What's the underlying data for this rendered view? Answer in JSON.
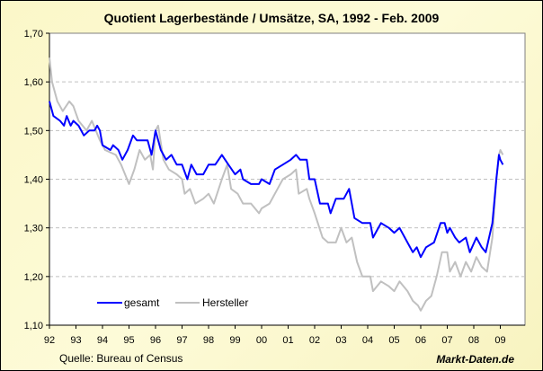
{
  "chart_data": {
    "type": "line",
    "title": "Quotient Lagerbestände / Umsätze, SA, 1992 -  Feb. 2009",
    "xlabel": "",
    "ylabel": "",
    "xlim": [
      1992,
      2010
    ],
    "ylim": [
      1.1,
      1.7
    ],
    "grid": true,
    "legend": "bottom-left",
    "x_tick_labels": [
      "92",
      "93",
      "94",
      "95",
      "96",
      "97",
      "98",
      "99",
      "00",
      "01",
      "02",
      "03",
      "04",
      "05",
      "06",
      "07",
      "08",
      "09"
    ],
    "y_tick_labels": [
      "1,10",
      "1,20",
      "1,30",
      "1,40",
      "1,50",
      "1,60",
      "1,70"
    ],
    "y_ticks": [
      1.1,
      1.2,
      1.3,
      1.4,
      1.5,
      1.6,
      1.7
    ],
    "series": [
      {
        "name": "gesamt",
        "color": "#0000ff",
        "points": [
          [
            1992.0,
            1.56
          ],
          [
            1992.15,
            1.53
          ],
          [
            1992.4,
            1.52
          ],
          [
            1992.55,
            1.51
          ],
          [
            1992.65,
            1.53
          ],
          [
            1992.8,
            1.51
          ],
          [
            1992.9,
            1.52
          ],
          [
            1993.1,
            1.51
          ],
          [
            1993.3,
            1.49
          ],
          [
            1993.5,
            1.5
          ],
          [
            1993.7,
            1.5
          ],
          [
            1993.8,
            1.51
          ],
          [
            1993.9,
            1.5
          ],
          [
            1994.0,
            1.47
          ],
          [
            1994.3,
            1.46
          ],
          [
            1994.4,
            1.47
          ],
          [
            1994.6,
            1.46
          ],
          [
            1994.75,
            1.44
          ],
          [
            1994.95,
            1.46
          ],
          [
            1995.15,
            1.49
          ],
          [
            1995.3,
            1.48
          ],
          [
            1995.5,
            1.48
          ],
          [
            1995.7,
            1.48
          ],
          [
            1995.85,
            1.45
          ],
          [
            1996.0,
            1.5
          ],
          [
            1996.2,
            1.46
          ],
          [
            1996.4,
            1.44
          ],
          [
            1996.6,
            1.45
          ],
          [
            1996.8,
            1.43
          ],
          [
            1997.0,
            1.43
          ],
          [
            1997.2,
            1.4
          ],
          [
            1997.35,
            1.43
          ],
          [
            1997.55,
            1.41
          ],
          [
            1997.8,
            1.41
          ],
          [
            1998.0,
            1.43
          ],
          [
            1998.25,
            1.43
          ],
          [
            1998.5,
            1.45
          ],
          [
            1998.75,
            1.43
          ],
          [
            1999.0,
            1.41
          ],
          [
            1999.2,
            1.42
          ],
          [
            1999.3,
            1.4
          ],
          [
            1999.6,
            1.39
          ],
          [
            1999.9,
            1.39
          ],
          [
            2000.0,
            1.4
          ],
          [
            2000.3,
            1.39
          ],
          [
            2000.5,
            1.42
          ],
          [
            2000.8,
            1.43
          ],
          [
            2001.1,
            1.44
          ],
          [
            2001.3,
            1.45
          ],
          [
            2001.45,
            1.44
          ],
          [
            2001.7,
            1.44
          ],
          [
            2001.8,
            1.4
          ],
          [
            2002.0,
            1.4
          ],
          [
            2002.2,
            1.35
          ],
          [
            2002.5,
            1.35
          ],
          [
            2002.6,
            1.33
          ],
          [
            2002.8,
            1.36
          ],
          [
            2003.1,
            1.36
          ],
          [
            2003.3,
            1.38
          ],
          [
            2003.5,
            1.32
          ],
          [
            2003.8,
            1.31
          ],
          [
            2004.1,
            1.31
          ],
          [
            2004.2,
            1.28
          ],
          [
            2004.5,
            1.31
          ],
          [
            2004.8,
            1.3
          ],
          [
            2005.0,
            1.29
          ],
          [
            2005.2,
            1.3
          ],
          [
            2005.4,
            1.28
          ],
          [
            2005.7,
            1.25
          ],
          [
            2005.85,
            1.26
          ],
          [
            2006.0,
            1.24
          ],
          [
            2006.2,
            1.26
          ],
          [
            2006.5,
            1.27
          ],
          [
            2006.75,
            1.31
          ],
          [
            2006.9,
            1.31
          ],
          [
            2007.0,
            1.29
          ],
          [
            2007.1,
            1.3
          ],
          [
            2007.3,
            1.28
          ],
          [
            2007.45,
            1.27
          ],
          [
            2007.7,
            1.28
          ],
          [
            2007.85,
            1.25
          ],
          [
            2008.1,
            1.28
          ],
          [
            2008.3,
            1.26
          ],
          [
            2008.45,
            1.25
          ],
          [
            2008.7,
            1.31
          ],
          [
            2008.85,
            1.4
          ],
          [
            2008.95,
            1.45
          ],
          [
            2009.0,
            1.44
          ],
          [
            2009.1,
            1.43
          ]
        ]
      },
      {
        "name": "Hersteller",
        "color": "#c0c0c0",
        "points": [
          [
            1992.0,
            1.65
          ],
          [
            1992.1,
            1.6
          ],
          [
            1992.3,
            1.56
          ],
          [
            1992.5,
            1.54
          ],
          [
            1992.75,
            1.56
          ],
          [
            1992.9,
            1.55
          ],
          [
            1993.1,
            1.52
          ],
          [
            1993.4,
            1.5
          ],
          [
            1993.6,
            1.52
          ],
          [
            1993.9,
            1.48
          ],
          [
            1994.1,
            1.46
          ],
          [
            1994.5,
            1.45
          ],
          [
            1994.7,
            1.43
          ],
          [
            1995.0,
            1.39
          ],
          [
            1995.2,
            1.42
          ],
          [
            1995.4,
            1.46
          ],
          [
            1995.6,
            1.44
          ],
          [
            1995.8,
            1.45
          ],
          [
            1995.9,
            1.42
          ],
          [
            1996.0,
            1.5
          ],
          [
            1996.1,
            1.51
          ],
          [
            1996.3,
            1.44
          ],
          [
            1996.5,
            1.42
          ],
          [
            1996.8,
            1.41
          ],
          [
            1997.0,
            1.4
          ],
          [
            1997.1,
            1.37
          ],
          [
            1997.3,
            1.38
          ],
          [
            1997.5,
            1.35
          ],
          [
            1997.8,
            1.36
          ],
          [
            1998.0,
            1.37
          ],
          [
            1998.2,
            1.35
          ],
          [
            1998.5,
            1.4
          ],
          [
            1998.7,
            1.43
          ],
          [
            1998.85,
            1.38
          ],
          [
            1999.1,
            1.37
          ],
          [
            1999.3,
            1.35
          ],
          [
            1999.6,
            1.35
          ],
          [
            1999.9,
            1.33
          ],
          [
            2000.0,
            1.34
          ],
          [
            2000.3,
            1.35
          ],
          [
            2000.6,
            1.38
          ],
          [
            2000.8,
            1.4
          ],
          [
            2001.1,
            1.41
          ],
          [
            2001.3,
            1.42
          ],
          [
            2001.4,
            1.37
          ],
          [
            2001.7,
            1.38
          ],
          [
            2001.8,
            1.36
          ],
          [
            2002.0,
            1.33
          ],
          [
            2002.3,
            1.28
          ],
          [
            2002.5,
            1.27
          ],
          [
            2002.8,
            1.27
          ],
          [
            2003.0,
            1.3
          ],
          [
            2003.2,
            1.27
          ],
          [
            2003.4,
            1.28
          ],
          [
            2003.6,
            1.23
          ],
          [
            2003.8,
            1.2
          ],
          [
            2004.1,
            1.2
          ],
          [
            2004.2,
            1.17
          ],
          [
            2004.5,
            1.19
          ],
          [
            2004.8,
            1.18
          ],
          [
            2005.0,
            1.17
          ],
          [
            2005.2,
            1.19
          ],
          [
            2005.5,
            1.17
          ],
          [
            2005.7,
            1.15
          ],
          [
            2005.9,
            1.14
          ],
          [
            2006.0,
            1.13
          ],
          [
            2006.2,
            1.15
          ],
          [
            2006.4,
            1.16
          ],
          [
            2006.6,
            1.2
          ],
          [
            2006.8,
            1.25
          ],
          [
            2007.0,
            1.25
          ],
          [
            2007.1,
            1.21
          ],
          [
            2007.3,
            1.23
          ],
          [
            2007.5,
            1.2
          ],
          [
            2007.7,
            1.23
          ],
          [
            2007.9,
            1.21
          ],
          [
            2008.1,
            1.24
          ],
          [
            2008.3,
            1.22
          ],
          [
            2008.5,
            1.21
          ],
          [
            2008.7,
            1.28
          ],
          [
            2008.85,
            1.4
          ],
          [
            2008.95,
            1.45
          ],
          [
            2009.0,
            1.46
          ],
          [
            2009.1,
            1.45
          ]
        ]
      }
    ]
  },
  "footer": {
    "source": "Quelle: Bureau of Census",
    "brand": "Markt-Daten.de"
  }
}
